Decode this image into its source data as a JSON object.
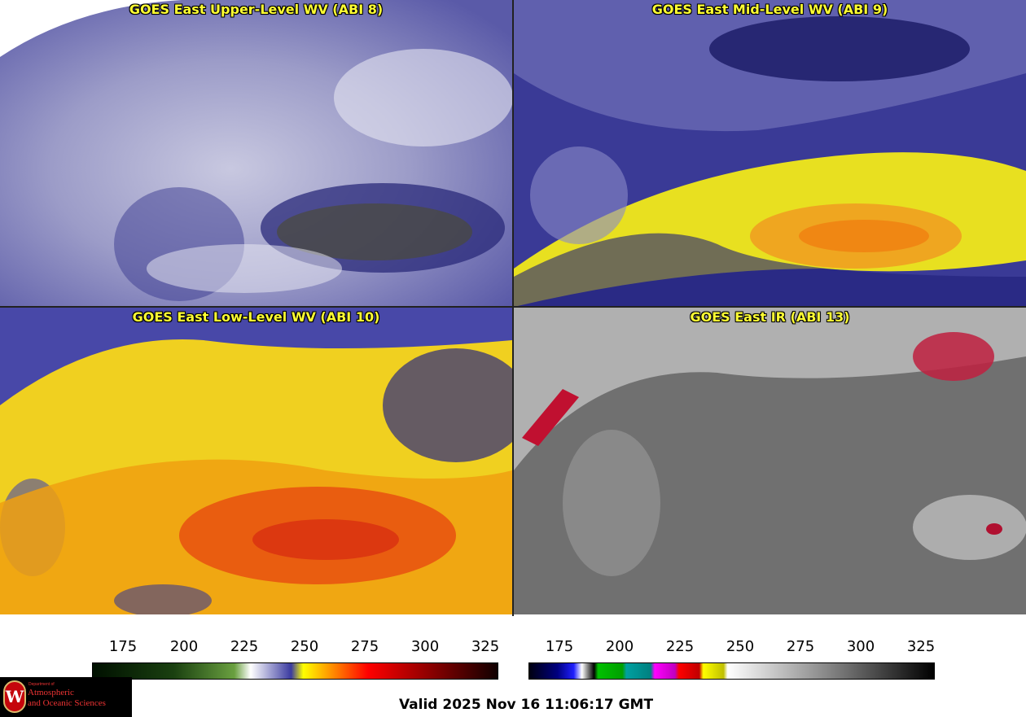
{
  "panels": [
    {
      "title": "GOES East Upper-Level WV (ABI 8)",
      "style": "upper"
    },
    {
      "title": "GOES East Mid-Level WV (ABI 9)",
      "style": "mid"
    },
    {
      "title": "GOES East Low-Level WV (ABI 10)",
      "style": "low"
    },
    {
      "title": "GOES East IR (ABI 13)",
      "style": "ir"
    }
  ],
  "colorbars": {
    "wv": {
      "ticks": [
        "175",
        "200",
        "225",
        "250",
        "275",
        "300",
        "325"
      ]
    },
    "ir": {
      "ticks": [
        "175",
        "200",
        "225",
        "250",
        "275",
        "300",
        "325"
      ]
    }
  },
  "footer": {
    "valid": "Valid 2025 Nov 16 11:06:17 GMT"
  },
  "logo": {
    "dept": "Department of",
    "line1": "Atmospheric",
    "line2": "and Oceanic Sciences",
    "emblem": "W"
  },
  "colors": {
    "title": "#ffff33",
    "coast": "#228b22",
    "borders": "#e03030",
    "land_outline": "#8b4513"
  }
}
